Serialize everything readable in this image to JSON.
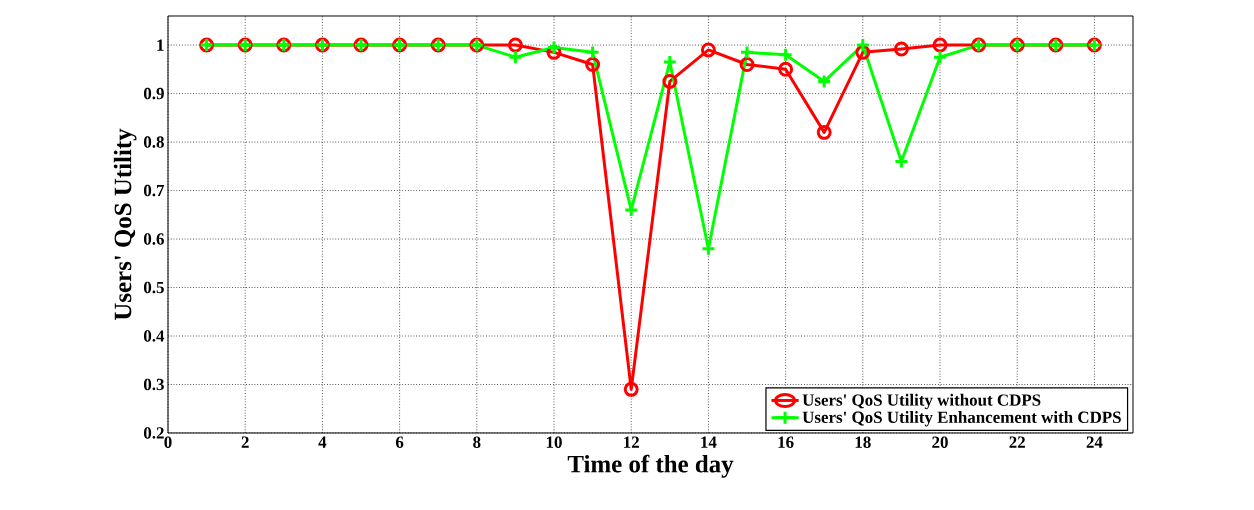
{
  "chart_data": {
    "type": "line",
    "xlabel": "Time of the day",
    "ylabel": "Users' QoS Utility",
    "x": [
      1,
      2,
      3,
      4,
      5,
      6,
      7,
      8,
      9,
      10,
      11,
      12,
      13,
      14,
      15,
      16,
      17,
      18,
      19,
      20,
      21,
      22,
      23,
      24
    ],
    "series": [
      {
        "name": "Users' QoS Utility without CDPS",
        "color": "#ff0000",
        "marker": "circle",
        "values": [
          1,
          1,
          1,
          1,
          1,
          1,
          1,
          1,
          1,
          0.985,
          0.96,
          0.29,
          0.925,
          0.99,
          0.96,
          0.95,
          0.82,
          0.985,
          0.992,
          1,
          1,
          1,
          1,
          1
        ]
      },
      {
        "name": "Users' QoS Utility Enhancement with CDPS",
        "color": "#00ff00",
        "marker": "cross",
        "values": [
          1,
          1,
          1,
          1,
          1,
          1,
          1,
          1,
          0.975,
          0.995,
          0.985,
          0.66,
          0.965,
          0.58,
          0.985,
          0.98,
          0.925,
          1,
          0.76,
          0.975,
          1,
          1,
          1,
          1
        ]
      }
    ],
    "xlim": [
      0,
      25
    ],
    "ylim": [
      0.2,
      1.06
    ],
    "xticks": [
      0,
      2,
      4,
      6,
      8,
      10,
      12,
      14,
      16,
      18,
      20,
      22,
      24
    ],
    "yticks": [
      0.2,
      0.3,
      0.4,
      0.5,
      0.6,
      0.7,
      0.8,
      0.9,
      1
    ],
    "grid": true,
    "legend": "bottom right",
    "line_style": "solid"
  }
}
